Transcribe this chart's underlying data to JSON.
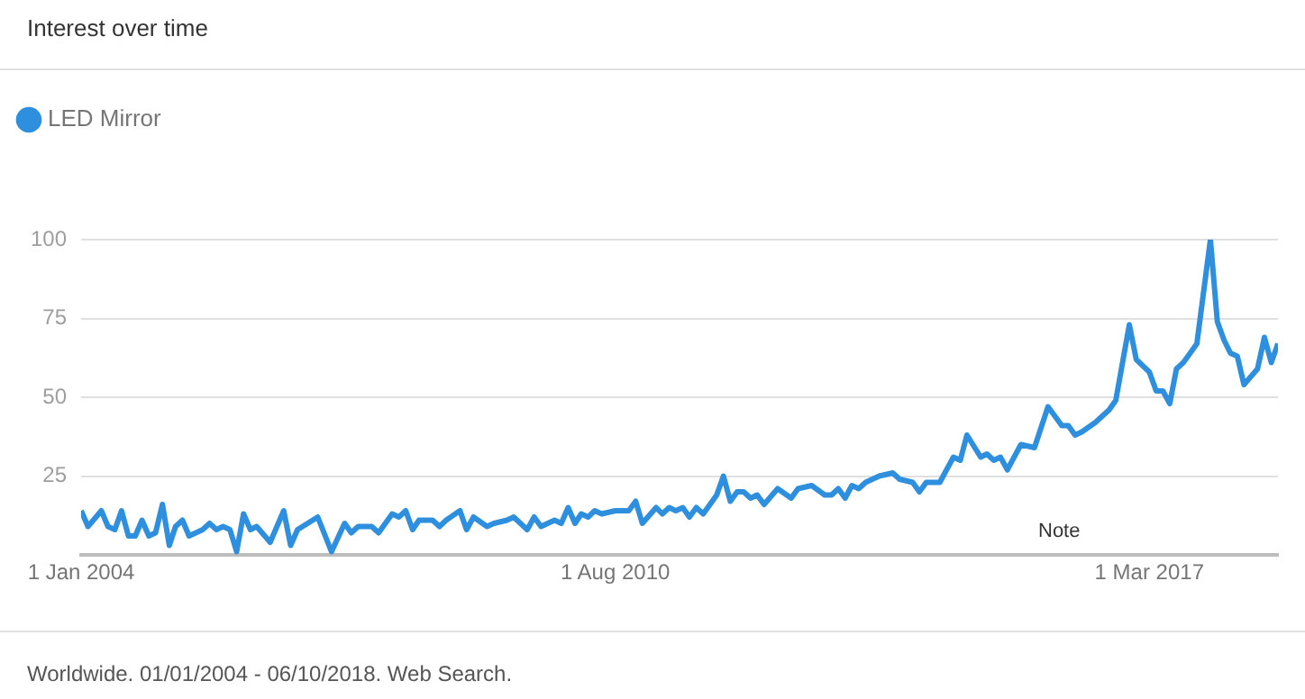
{
  "chart_data": {
    "type": "line",
    "title": "Interest over time",
    "xlim": [
      "2004-01",
      "2018-10"
    ],
    "xticks": [
      {
        "value": "2004-01",
        "label": "1 Jan 2004"
      },
      {
        "value": "2010-08",
        "label": "1 Aug 2010"
      },
      {
        "value": "2017-03",
        "label": "1 Mar 2017"
      }
    ],
    "ylim": [
      0,
      100
    ],
    "yticks": [
      25,
      50,
      75,
      100
    ],
    "grid": "y",
    "legend": "top left",
    "marker": "none",
    "series": [
      {
        "name": "LED Mirror",
        "color": "#2f8fdf",
        "x": [
          "2004-01",
          "2004-02",
          "2004-04",
          "2004-05",
          "2004-06",
          "2004-07",
          "2004-08",
          "2004-09",
          "2004-10",
          "2004-11",
          "2004-12",
          "2005-01",
          "2005-02",
          "2005-03",
          "2005-04",
          "2005-05",
          "2005-07",
          "2005-08",
          "2005-09",
          "2005-10",
          "2005-11",
          "2005-12",
          "2006-01",
          "2006-02",
          "2006-03",
          "2006-05",
          "2006-07",
          "2006-08",
          "2006-09",
          "2006-12",
          "2007-02",
          "2007-04",
          "2007-05",
          "2007-06",
          "2007-08",
          "2007-09",
          "2007-11",
          "2007-12",
          "2008-01",
          "2008-02",
          "2008-03",
          "2008-05",
          "2008-06",
          "2008-07",
          "2008-09",
          "2008-10",
          "2008-11",
          "2009-01",
          "2009-02",
          "2009-04",
          "2009-05",
          "2009-07",
          "2009-08",
          "2009-09",
          "2009-11",
          "2009-12",
          "2010-01",
          "2010-02",
          "2010-03",
          "2010-04",
          "2010-05",
          "2010-06",
          "2010-08",
          "2010-10",
          "2010-11",
          "2010-12",
          "2011-02",
          "2011-03",
          "2011-04",
          "2011-05",
          "2011-06",
          "2011-07",
          "2011-08",
          "2011-09",
          "2011-11",
          "2011-12",
          "2012-01",
          "2012-02",
          "2012-03",
          "2012-04",
          "2012-05",
          "2012-06",
          "2012-08",
          "2012-10",
          "2012-11",
          "2013-01",
          "2013-03",
          "2013-04",
          "2013-05",
          "2013-06",
          "2013-07",
          "2013-08",
          "2013-09",
          "2013-11",
          "2014-01",
          "2014-02",
          "2014-04",
          "2014-05",
          "2014-06",
          "2014-08",
          "2014-10",
          "2014-11",
          "2014-12",
          "2015-02",
          "2015-03",
          "2015-04",
          "2015-05",
          "2015-06",
          "2015-08",
          "2015-10",
          "2015-12",
          "2016-02",
          "2016-03",
          "2016-04",
          "2016-05",
          "2016-07",
          "2016-08",
          "2016-09",
          "2016-10",
          "2016-12",
          "2017-01",
          "2017-03",
          "2017-04",
          "2017-05",
          "2017-06",
          "2017-07",
          "2017-08",
          "2017-09",
          "2017-10",
          "2017-12",
          "2018-01",
          "2018-02",
          "2018-03",
          "2018-04",
          "2018-05",
          "2018-07",
          "2018-08",
          "2018-09",
          "2018-10"
        ],
        "values": [
          14,
          9,
          14,
          9,
          8,
          14,
          6,
          6,
          11,
          6,
          7,
          16,
          3,
          9,
          11,
          6,
          8,
          10,
          8,
          9,
          8,
          1,
          13,
          8,
          9,
          4,
          14,
          3,
          8,
          12,
          1,
          10,
          7,
          9,
          9,
          7,
          13,
          12,
          14,
          8,
          11,
          11,
          9,
          11,
          14,
          8,
          12,
          9,
          10,
          11,
          12,
          8,
          12,
          9,
          11,
          10,
          15,
          10,
          13,
          12,
          14,
          13,
          14,
          14,
          17,
          10,
          15,
          13,
          15,
          14,
          15,
          12,
          15,
          13,
          19,
          25,
          17,
          20,
          20,
          18,
          19,
          16,
          21,
          18,
          21,
          22,
          19,
          19,
          21,
          18,
          22,
          21,
          23,
          25,
          26,
          24,
          23,
          20,
          23,
          23,
          31,
          30,
          38,
          31,
          32,
          30,
          31,
          27,
          35,
          34,
          47,
          41,
          41,
          38,
          39,
          42,
          44,
          46,
          49,
          73,
          62,
          58,
          52,
          52,
          48,
          59,
          61,
          64,
          67,
          100,
          74,
          68,
          64,
          63,
          54,
          59,
          69,
          61,
          67
        ]
      }
    ],
    "annotations": [
      "Note",
      "Worldwide. 01/01/2004 - 06/10/2018. Web Search."
    ]
  }
}
